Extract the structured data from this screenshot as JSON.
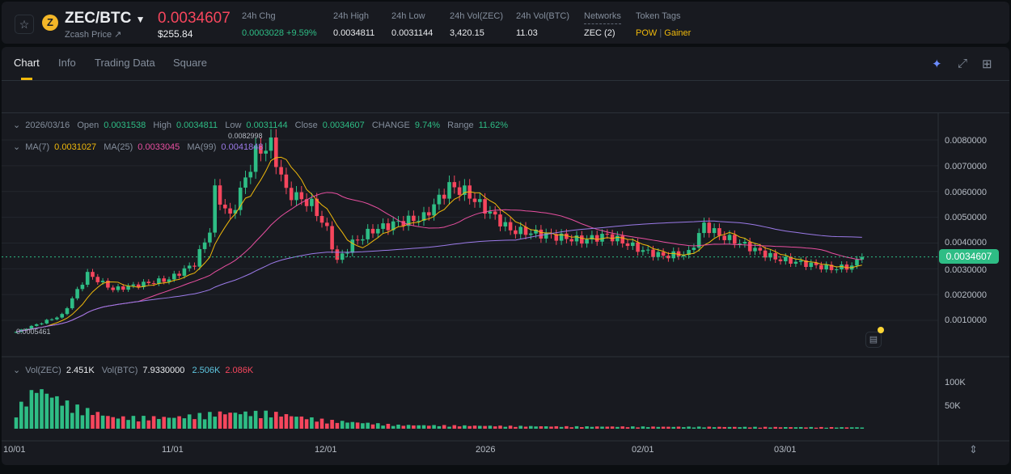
{
  "header": {
    "symbol": "ZEC/BTC",
    "subtitle": "Zcash Price ↗",
    "price": "0.0034607",
    "usd_price": "$255.84",
    "stats": [
      {
        "label": "24h Chg",
        "value": "0.0003028 +9.59%"
      },
      {
        "label": "24h High",
        "value": "0.0034811"
      },
      {
        "label": "24h Low",
        "value": "0.0031144"
      },
      {
        "label": "24h Vol(ZEC)",
        "value": "3,420.15"
      },
      {
        "label": "24h Vol(BTC)",
        "value": "11.03"
      },
      {
        "label": "Networks",
        "value": "ZEC (2)"
      }
    ],
    "tags_label": "Token Tags",
    "tags": [
      "POW",
      "Gainer"
    ]
  },
  "tabs": [
    "Chart",
    "Info",
    "Trading Data",
    "Square"
  ],
  "icons": {
    "ai": "sparkle-ai-icon",
    "expand": "expand-icon",
    "layout": "layout-grid-icon"
  },
  "ohlc": {
    "date": "2026/03/16",
    "open_l": "Open",
    "open": "0.0031538",
    "high_l": "High",
    "high": "0.0034811",
    "low_l": "Low",
    "low": "0.0031144",
    "close_l": "Close",
    "close": "0.0034607",
    "change_l": "CHANGE",
    "change": "9.74%",
    "range_l": "Range",
    "range": "11.62%"
  },
  "ma": {
    "ma7_l": "MA(7)",
    "ma7": "0.0031027",
    "ma25_l": "MA(25)",
    "ma25": "0.0033045",
    "ma99_l": "MA(99)",
    "ma99": "0.0041848"
  },
  "vol": {
    "zec_l": "Vol(ZEC)",
    "zec": "2.451K",
    "btc_l": "Vol(BTC)",
    "btc": "7.9330000",
    "ma1": "2.506K",
    "ma2": "2.086K"
  },
  "annotations": {
    "max": "0.0082998",
    "min": "0.0005461"
  },
  "chart_data": {
    "type": "candlestick",
    "price_ticks": [
      "0.0080000",
      "0.0070000",
      "0.0060000",
      "0.0050000",
      "0.0040000",
      "0.0030000",
      "0.0020000",
      "0.0010000"
    ],
    "volume_ticks": [
      "100K",
      "50K"
    ],
    "time_ticks": [
      "10/01",
      "11/01",
      "12/01",
      "2026",
      "02/01",
      "03/01"
    ],
    "current_price": "0.0034607",
    "colors": {
      "up": "#2ebd85",
      "down": "#f6465d",
      "ma7": "#f0b90b",
      "ma25": "#e84fa0",
      "ma99": "#9b7ae8"
    },
    "close_keypoints": [
      [
        "2025-10-01",
        0.00055
      ],
      [
        "2025-10-10",
        0.0012
      ],
      [
        "2025-10-15",
        0.0028
      ],
      [
        "2025-10-20",
        0.0022
      ],
      [
        "2025-10-31",
        0.0026
      ],
      [
        "2025-11-05",
        0.0032
      ],
      [
        "2025-11-08",
        0.0045
      ],
      [
        "2025-11-09",
        0.006
      ],
      [
        "2025-11-12",
        0.005
      ],
      [
        "2025-11-15",
        0.0065
      ],
      [
        "2025-11-17",
        0.0075
      ],
      [
        "2025-11-20",
        0.0078
      ],
      [
        "2025-11-23",
        0.006
      ],
      [
        "2025-11-28",
        0.0055
      ],
      [
        "2025-12-01",
        0.0045
      ],
      [
        "2025-12-03",
        0.0033
      ],
      [
        "2025-12-06",
        0.004
      ],
      [
        "2025-12-10",
        0.0045
      ],
      [
        "2025-12-15",
        0.0048
      ],
      [
        "2025-12-20",
        0.005
      ],
      [
        "2025-12-25",
        0.0062
      ],
      [
        "2025-12-28",
        0.006
      ],
      [
        "2026-01-03",
        0.005
      ],
      [
        "2026-01-06",
        0.0045
      ],
      [
        "2026-01-10",
        0.0044
      ],
      [
        "2026-01-20",
        0.0041
      ],
      [
        "2026-01-25",
        0.0043
      ],
      [
        "2026-02-01",
        0.0037
      ],
      [
        "2026-02-05",
        0.0035
      ],
      [
        "2026-02-10",
        0.0036
      ],
      [
        "2026-02-13",
        0.0047
      ],
      [
        "2026-02-16",
        0.0043
      ],
      [
        "2026-02-20",
        0.004
      ],
      [
        "2026-02-27",
        0.0034
      ],
      [
        "2026-03-05",
        0.0032
      ],
      [
        "2026-03-10",
        0.003
      ],
      [
        "2026-03-14",
        0.0031
      ],
      [
        "2026-03-16",
        0.00346
      ]
    ],
    "volume_keypoints": [
      [
        "2025-10-01",
        40000
      ],
      [
        "2025-10-05",
        90000
      ],
      [
        "2025-10-12",
        50000
      ],
      [
        "2025-10-20",
        25000
      ],
      [
        "2025-11-01",
        25000
      ],
      [
        "2025-11-10",
        35000
      ],
      [
        "2025-11-20",
        35000
      ],
      [
        "2025-12-01",
        18000
      ],
      [
        "2025-12-15",
        8000
      ],
      [
        "2026-01-15",
        5000
      ],
      [
        "2026-03-16",
        3000
      ]
    ]
  }
}
